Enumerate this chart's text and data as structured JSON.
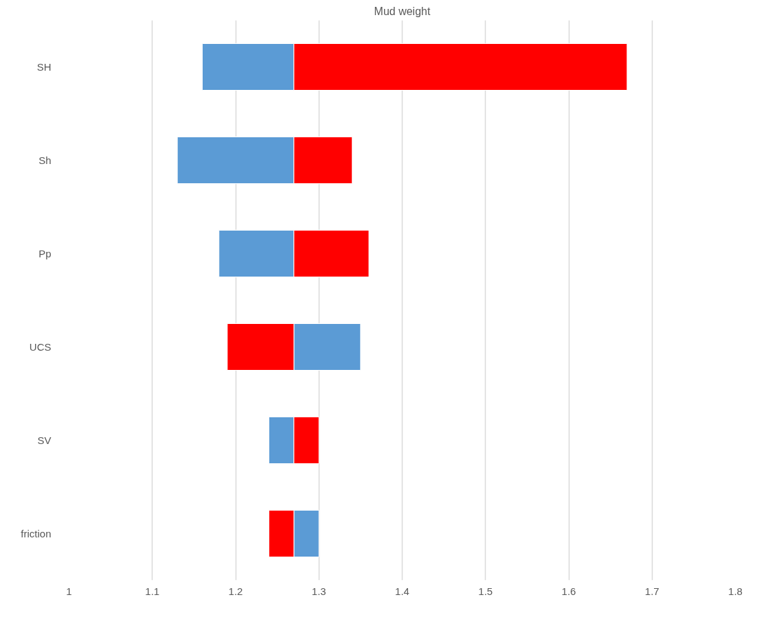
{
  "chart_data": {
    "type": "bar",
    "orientation": "horizontal",
    "title": "Mud weight",
    "categories": [
      "SH",
      "Sh",
      "Pp",
      "UCS",
      "SV",
      "friction"
    ],
    "series": [
      {
        "color": "#5b9bd5",
        "base": [
          1.16,
          1.13,
          1.18,
          1.27,
          1.24,
          1.27
        ],
        "values": [
          0.11,
          0.14,
          0.09,
          0.08,
          0.03,
          0.03
        ]
      },
      {
        "color": "#ff0000",
        "base": [
          1.27,
          1.27,
          1.27,
          1.19,
          1.27,
          1.24
        ],
        "values": [
          0.4,
          0.07,
          0.09,
          0.08,
          0.03,
          0.03
        ]
      }
    ],
    "xlim": [
      1,
      1.8
    ],
    "xticks": [
      1,
      1.1,
      1.2,
      1.3,
      1.4,
      1.5,
      1.6,
      1.7,
      1.8
    ],
    "grid": "x"
  }
}
